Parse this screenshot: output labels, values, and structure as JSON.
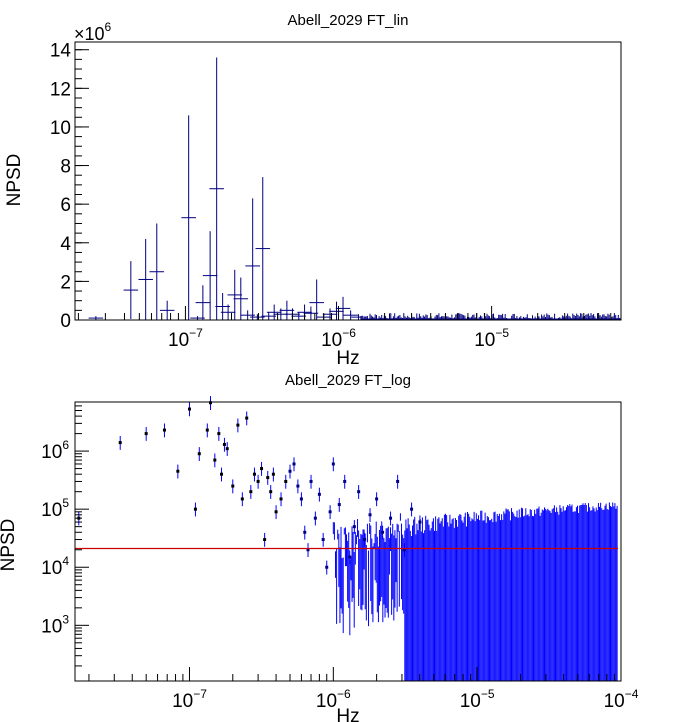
{
  "chart_data": [
    {
      "type": "scatter",
      "title": "Abell_2029 FT_lin",
      "xlabel": "Hz",
      "ylabel": "NPSD",
      "x_scale": "log",
      "y_scale": "linear",
      "xlim": [
        1.9e-08,
        7e-05
      ],
      "ylim": [
        0,
        14400000
      ],
      "y_multiplier_label": "×10",
      "y_multiplier_exp": "6",
      "grid": false,
      "legend": "none",
      "x_ticks": [
        {
          "value": 1e-07,
          "base": "10",
          "exp": "−7"
        },
        {
          "value": 1e-06,
          "base": "10",
          "exp": "−6"
        },
        {
          "value": 1e-05,
          "base": "10",
          "exp": "−5"
        }
      ],
      "y_ticks": [
        {
          "value": 0,
          "label": "0"
        },
        {
          "value": 2000000,
          "label": "2"
        },
        {
          "value": 4000000,
          "label": "4"
        },
        {
          "value": 6000000,
          "label": "6"
        },
        {
          "value": 8000000,
          "label": "8"
        },
        {
          "value": 10000000,
          "label": "10"
        },
        {
          "value": 12000000,
          "label": "12"
        },
        {
          "value": 14000000,
          "label": "14"
        }
      ],
      "series": [
        {
          "color": "#000080",
          "x": [
            2.6e-08,
            4.4e-08,
            5.5e-08,
            6.5e-08,
            7.6e-08,
            1.05e-07,
            1.2e-07,
            1.3e-07,
            1.45e-07,
            1.6e-07,
            1.75e-07,
            1.9e-07,
            2.1e-07,
            2.3e-07,
            2.55e-07,
            2.75e-07,
            2.95e-07,
            3.2e-07,
            3.5e-07,
            3.8e-07,
            4.2e-07,
            4.6e-07,
            5e-07,
            5.5e-07,
            6e-07,
            6.6e-07,
            7.2e-07,
            8e-07,
            8.8e-07,
            9.7e-07,
            1.07e-06,
            1.2e-06,
            1.35e-06
          ],
          "y": [
            100000,
            1550000,
            2100000,
            2500000,
            500000,
            5300000,
            100000,
            900000,
            2300000,
            6800000,
            700000,
            400000,
            1300000,
            1100000,
            250000,
            2800000,
            150000,
            3700000,
            200000,
            400000,
            300000,
            500000,
            300000,
            200000,
            400000,
            350000,
            900000,
            150000,
            300000,
            450000,
            600000,
            250000,
            150000
          ],
          "yerr": [
            100000,
            1500000,
            2100000,
            2500000,
            500000,
            5300000,
            100000,
            900000,
            2300000,
            6800000,
            700000,
            400000,
            1300000,
            1100000,
            250000,
            3500000,
            150000,
            3700000,
            200000,
            400000,
            300000,
            500000,
            300000,
            200000,
            400000,
            350000,
            1200000,
            150000,
            300000,
            500000,
            600000,
            250000,
            150000
          ]
        }
      ]
    },
    {
      "type": "scatter",
      "title": "Abell_2029 FT_log",
      "xlabel": "Hz",
      "ylabel": "NPSD",
      "x_scale": "log",
      "y_scale": "log",
      "xlim": [
        1.6e-08,
        0.0001
      ],
      "ylim": [
        110,
        7000000
      ],
      "grid": false,
      "legend": "none",
      "x_ticks": [
        {
          "value": 1e-07,
          "base": "10",
          "exp": "−7"
        },
        {
          "value": 1e-06,
          "base": "10",
          "exp": "−6"
        },
        {
          "value": 1e-05,
          "base": "10",
          "exp": "−5"
        },
        {
          "value": 0.0001,
          "base": "10",
          "exp": "−4"
        }
      ],
      "y_ticks": [
        {
          "value": 1000,
          "base": "10",
          "exp": "3"
        },
        {
          "value": 10000,
          "base": "10",
          "exp": "4"
        },
        {
          "value": 100000,
          "base": "10",
          "exp": "5"
        },
        {
          "value": 1000000,
          "base": "10",
          "exp": "6"
        }
      ],
      "reference_line": {
        "y": 21000,
        "color": "#cc0000"
      },
      "series": [
        {
          "color": "#0000ff",
          "x": [
            1.7e-08,
            3.3e-08,
            5e-08,
            6.7e-08,
            8.3e-08,
            1e-07,
            1.1e-07,
            1.17e-07,
            1.33e-07,
            1.4e-07,
            1.5e-07,
            1.6e-07,
            1.67e-07,
            1.75e-07,
            1.83e-07,
            2e-07,
            2.17e-07,
            2.33e-07,
            2.5e-07,
            2.67e-07,
            2.83e-07,
            3e-07,
            3.17e-07,
            3.33e-07,
            3.5e-07,
            3.67e-07,
            3.83e-07,
            4e-07,
            4.33e-07,
            4.67e-07,
            5e-07,
            5.33e-07,
            5.67e-07,
            6e-07,
            6.33e-07,
            6.67e-07,
            7e-07,
            7.5e-07,
            8e-07,
            8.5e-07,
            9e-07,
            9.5e-07,
            1e-06,
            1.1e-06,
            1.2e-06,
            1.3e-06,
            1.4e-06,
            1.5e-06,
            1.65e-06,
            1.8e-06,
            2e-06,
            2.2e-06,
            2.5e-06,
            2.8e-06,
            3.1e-06,
            3.5e-06,
            4e-06
          ],
          "y": [
            70000,
            1400000,
            2000000,
            2300000,
            450000,
            5300000,
            100000,
            900000,
            2300000,
            6800000,
            700000,
            2000000,
            400000,
            1300000,
            1100000,
            250000,
            2800000,
            150000,
            3700000,
            200000,
            400000,
            300000,
            500000,
            30000,
            350000,
            200000,
            400000,
            90000,
            150000,
            300000,
            450000,
            600000,
            250000,
            150000,
            40000,
            20000,
            300000,
            70000,
            180000,
            30000,
            10000,
            90000,
            600000,
            120000,
            300000,
            15000,
            50000,
            200000,
            30000,
            80000,
            150000,
            40000,
            70000,
            300000,
            20000,
            100000,
            60000
          ],
          "note_band": {
            "x_from": 1e-06,
            "x_to": 9.5e-05,
            "y_top": 100000,
            "y_bottom": 110
          }
        }
      ]
    }
  ]
}
